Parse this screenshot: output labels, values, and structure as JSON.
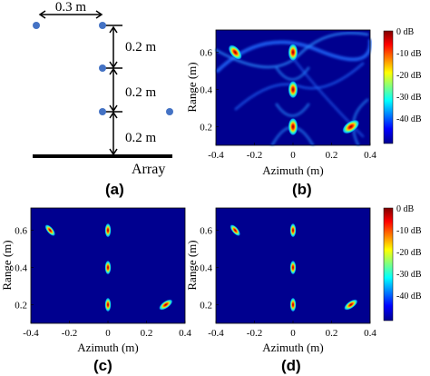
{
  "panel_labels": [
    "(a)",
    "(b)",
    "(c)",
    "(d)"
  ],
  "schematic": {
    "dim_horizontal": "0.3 m",
    "dim_vertical": [
      "0.2 m",
      "0.2 m",
      "0.2 m"
    ],
    "array_label": "Array",
    "point_color": "#4472c4"
  },
  "axes": {
    "xlabel": "Azimuth (m)",
    "ylabel": "Range (m)",
    "xticks": [
      "-0.4",
      "-0.2",
      "0",
      "0.2",
      "0.4"
    ],
    "yticks": [
      "0.6",
      "0.4",
      "0.2"
    ]
  },
  "colorbar": {
    "ticks": [
      "0 dB",
      "-10 dB",
      "-20 dB",
      "-30 dB",
      "-40 dB"
    ]
  },
  "chart_data": [
    {
      "type": "heatmap",
      "panel": "(b)",
      "xlabel": "Azimuth (m)",
      "ylabel": "Range (m)",
      "xlim": [
        -0.4,
        0.4
      ],
      "ylim": [
        0.1,
        0.72
      ],
      "colorbar_ticks_dB": [
        0,
        -10,
        -20,
        -30,
        -40
      ],
      "peaks": [
        {
          "x": -0.3,
          "y": 0.6
        },
        {
          "x": 0,
          "y": 0.6
        },
        {
          "x": 0,
          "y": 0.4
        },
        {
          "x": 0,
          "y": 0.2
        },
        {
          "x": 0.3,
          "y": 0.2
        }
      ]
    },
    {
      "type": "heatmap",
      "panel": "(c)",
      "xlabel": "Azimuth (m)",
      "ylabel": "Range (m)",
      "xlim": [
        -0.4,
        0.4
      ],
      "ylim": [
        0.1,
        0.72
      ],
      "peaks": [
        {
          "x": -0.3,
          "y": 0.6
        },
        {
          "x": 0,
          "y": 0.6
        },
        {
          "x": 0,
          "y": 0.4
        },
        {
          "x": 0,
          "y": 0.2
        },
        {
          "x": 0.3,
          "y": 0.2
        }
      ]
    },
    {
      "type": "heatmap",
      "panel": "(d)",
      "xlabel": "Azimuth (m)",
      "ylabel": "Range (m)",
      "xlim": [
        -0.4,
        0.4
      ],
      "ylim": [
        0.1,
        0.72
      ],
      "colorbar_ticks_dB": [
        0,
        -10,
        -20,
        -30,
        -40
      ],
      "peaks": [
        {
          "x": -0.3,
          "y": 0.6
        },
        {
          "x": 0,
          "y": 0.6
        },
        {
          "x": 0,
          "y": 0.4
        },
        {
          "x": 0,
          "y": 0.2
        },
        {
          "x": 0.3,
          "y": 0.2
        }
      ]
    }
  ]
}
